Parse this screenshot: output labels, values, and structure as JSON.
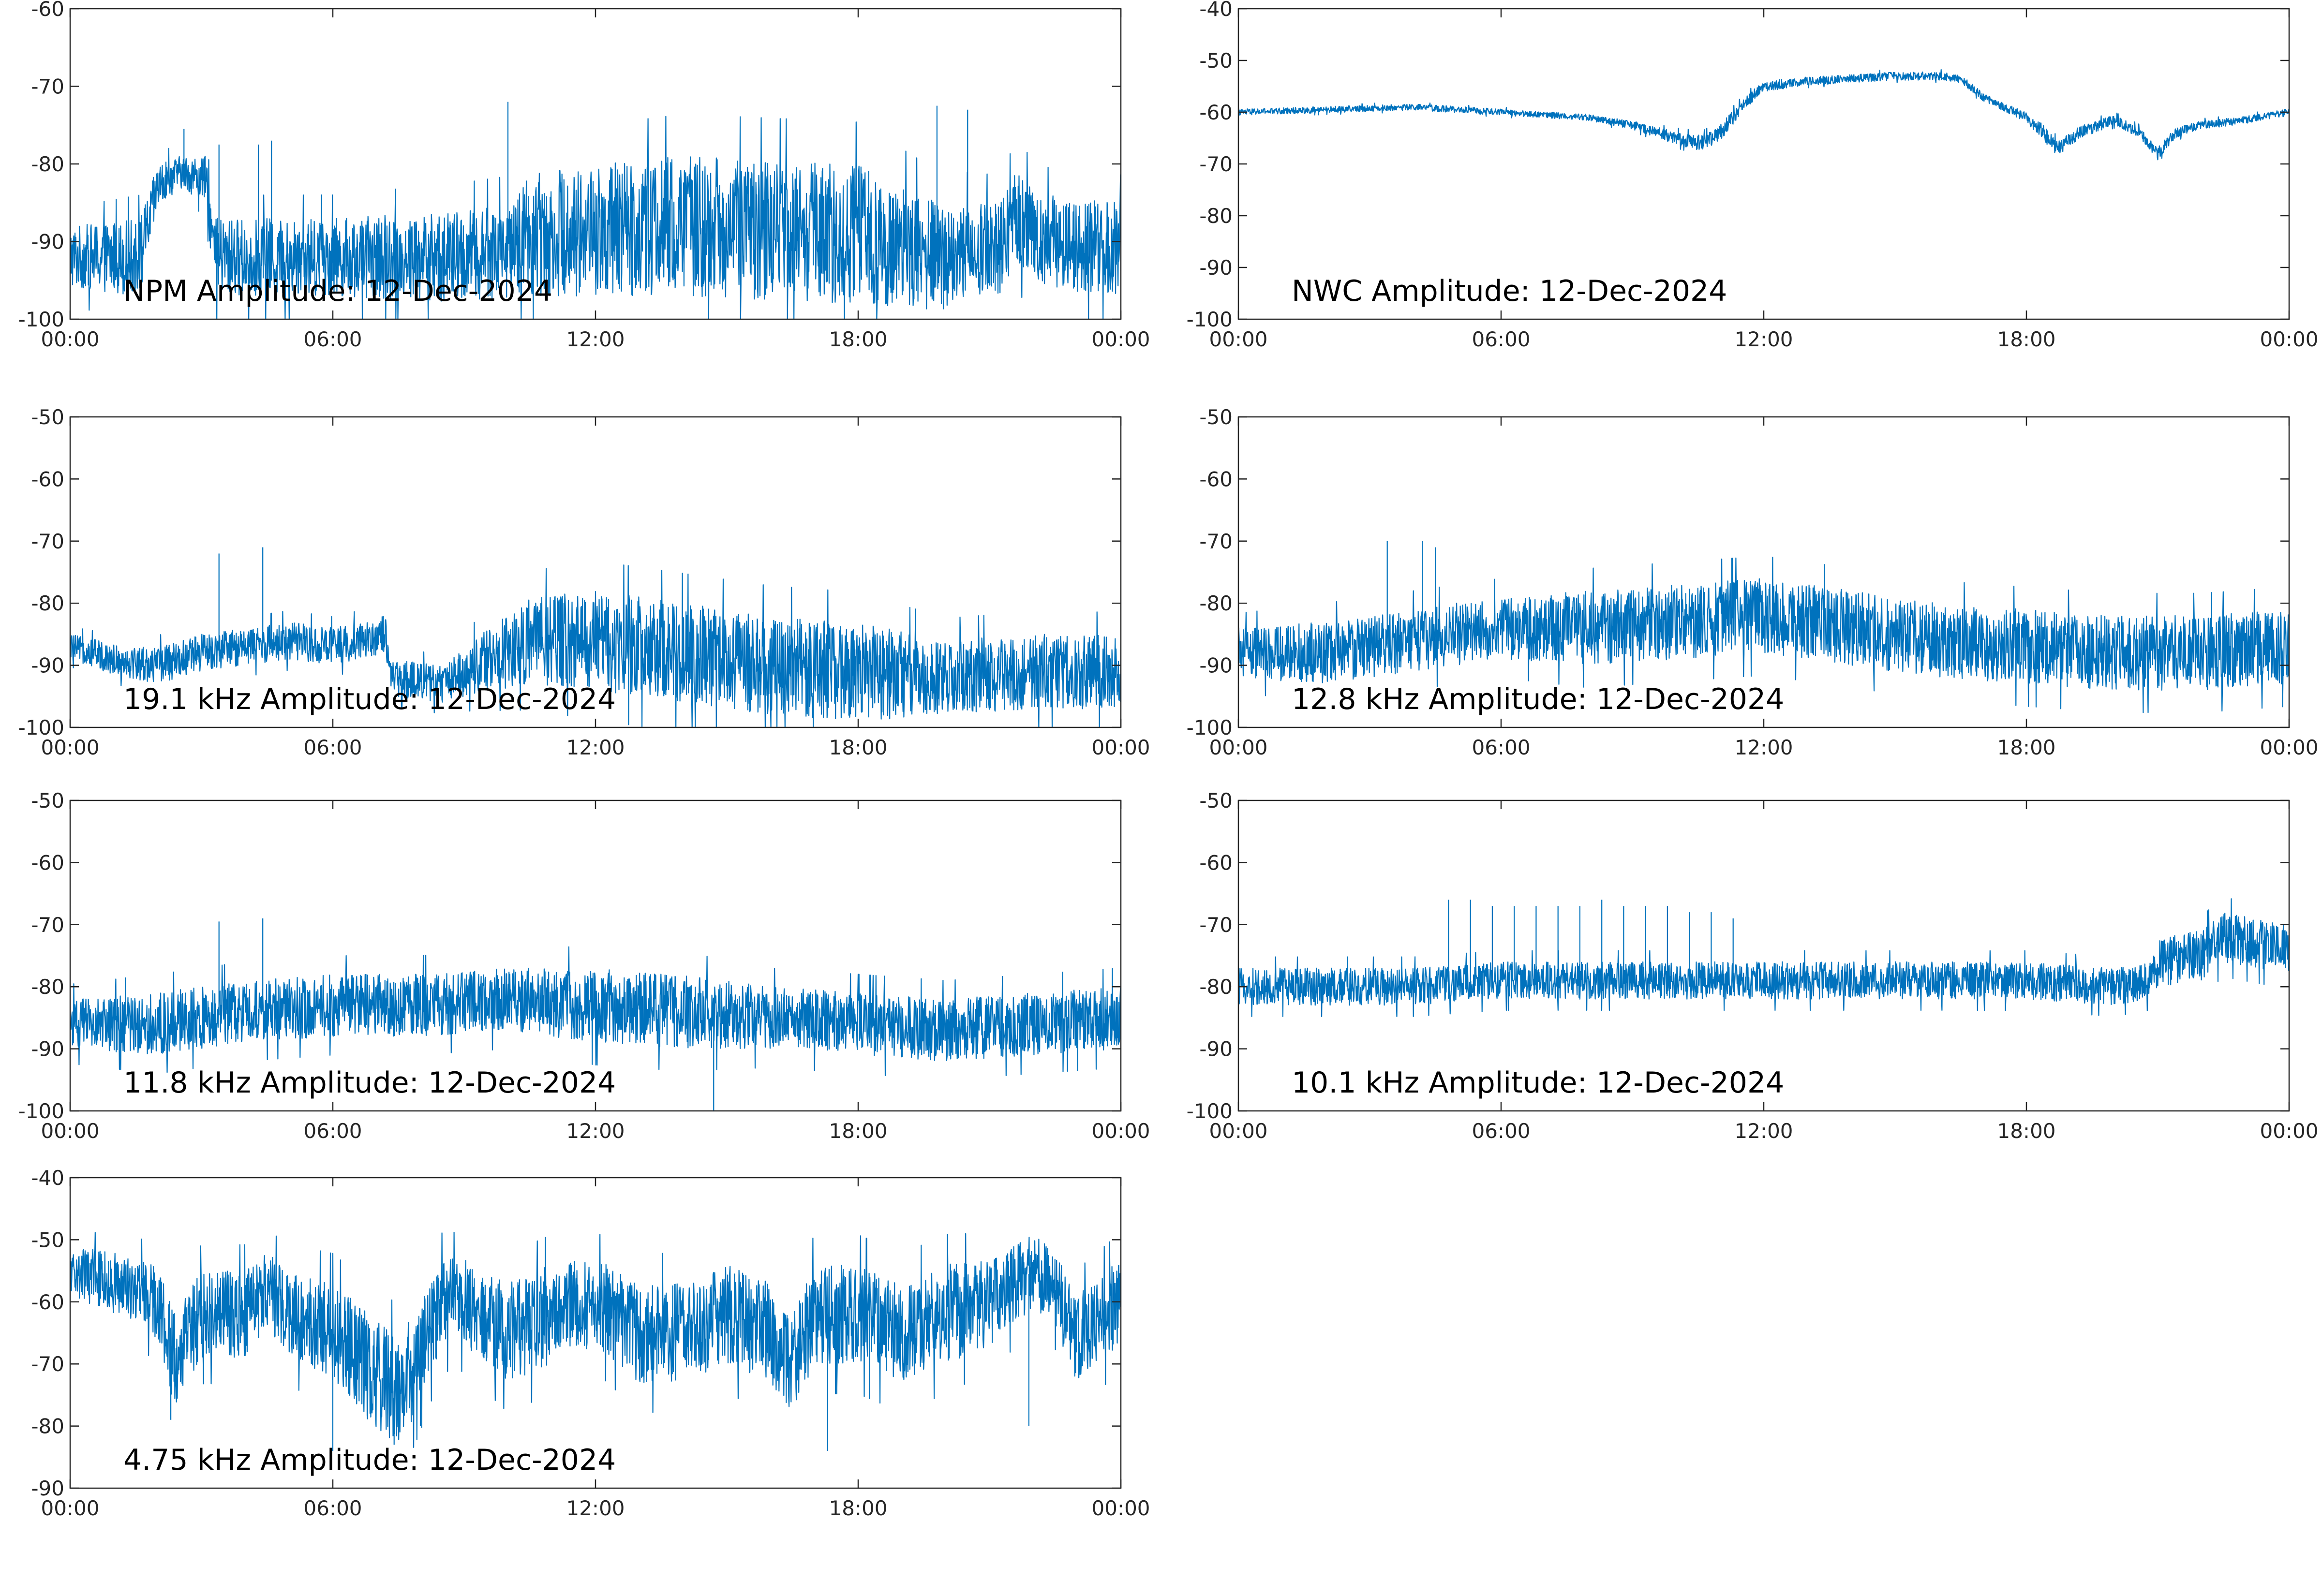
{
  "figure": {
    "background": "#ffffff",
    "line_color": "#0072bd",
    "axis_color": "#262626"
  },
  "chart_data": [
    {
      "type": "line",
      "title": "NPM Amplitude: 12-Dec-2024",
      "xlabel": "",
      "ylabel": "",
      "xlim": [
        "00:00",
        "24:00"
      ],
      "xticks": [
        "00:00",
        "06:00",
        "12:00",
        "18:00",
        "00:00"
      ],
      "ylim": [
        -100,
        -60
      ],
      "yticks": [
        "-60",
        "-70",
        "-80",
        "-90",
        "-100"
      ],
      "grid": false,
      "series": [
        {
          "color": "#0072bd",
          "trend_x_hours": [
            0,
            1.6,
            2.0,
            2.5,
            3.1,
            3.3,
            6,
            9,
            10.2,
            10.3,
            14,
            18,
            19.8,
            21.2,
            21.6,
            22.3,
            24
          ],
          "trend_y": [
            -92,
            -92,
            -83,
            -81,
            -82,
            -92,
            -92,
            -92,
            -91,
            -89,
            -88,
            -89,
            -92,
            -91,
            -87,
            -90,
            -91
          ],
          "noise_band": [
            4,
            5,
            3,
            2,
            3,
            5,
            5,
            6,
            6,
            8,
            9,
            9,
            7,
            6,
            6,
            6,
            6
          ],
          "spikes": [
            [
              2.6,
              -75.5
            ],
            [
              3.4,
              -77.5
            ],
            [
              4.3,
              -77.5
            ],
            [
              4.6,
              -77
            ],
            [
              10.0,
              -72
            ],
            [
              19.8,
              -72.5
            ],
            [
              20.5,
              -73
            ]
          ]
        }
      ]
    },
    {
      "type": "line",
      "title": "NWC Amplitude: 12-Dec-2024",
      "xlabel": "",
      "ylabel": "",
      "xlim": [
        "00:00",
        "24:00"
      ],
      "xticks": [
        "00:00",
        "06:00",
        "12:00",
        "18:00",
        "00:00"
      ],
      "ylim": [
        -100,
        -40
      ],
      "yticks": [
        "-40",
        "-50",
        "-60",
        "-70",
        "-80",
        "-90",
        "-100"
      ],
      "grid": false,
      "series": [
        {
          "color": "#0072bd",
          "trend_x_hours": [
            0,
            2,
            4,
            6,
            8,
            9,
            10,
            10.6,
            11,
            11.6,
            12,
            13,
            14,
            15,
            16,
            16.5,
            17,
            18,
            18.4,
            18.7,
            19.2,
            20,
            20.6,
            21,
            21.4,
            22,
            23,
            24
          ],
          "trend_y": [
            -60,
            -59.5,
            -59,
            -60,
            -61,
            -62.5,
            -65,
            -66,
            -64,
            -58,
            -55,
            -54,
            -53.5,
            -53,
            -53,
            -53.5,
            -57,
            -61,
            -64,
            -67,
            -64,
            -61.5,
            -64,
            -68,
            -64,
            -62.5,
            -61.5,
            -60
          ],
          "noise_band": [
            0.6,
            0.6,
            0.6,
            0.6,
            0.6,
            0.8,
            1.2,
            1.5,
            1.5,
            1.2,
            1,
            0.8,
            0.8,
            0.8,
            0.8,
            0.8,
            0.8,
            1,
            1.5,
            1.5,
            1.2,
            1,
            1,
            1.2,
            1,
            0.8,
            0.7,
            0.7
          ],
          "spikes": []
        }
      ]
    },
    {
      "type": "line",
      "title": "19.1 kHz Amplitude: 12-Dec-2024",
      "xlabel": "",
      "ylabel": "",
      "xlim": [
        "00:00",
        "24:00"
      ],
      "xticks": [
        "00:00",
        "06:00",
        "12:00",
        "18:00",
        "00:00"
      ],
      "ylim": [
        -100,
        -50
      ],
      "yticks": [
        "-50",
        "-60",
        "-70",
        "-80",
        "-90",
        "-100"
      ],
      "grid": false,
      "series": [
        {
          "color": "#0072bd",
          "trend_x_hours": [
            0,
            1,
            2,
            3,
            4,
            5,
            6,
            7.2,
            7.3,
            8.5,
            9,
            10.5,
            12,
            14,
            16,
            18,
            20,
            22,
            24
          ],
          "trend_y": [
            -87,
            -89,
            -90,
            -88,
            -87,
            -86,
            -87,
            -85,
            -92,
            -93,
            -91,
            -86,
            -86,
            -88,
            -90,
            -91,
            -92,
            -91,
            -91
          ],
          "noise_band": [
            2,
            2.5,
            3,
            3,
            3,
            3,
            3,
            3,
            3,
            3,
            4,
            7,
            8,
            8,
            8,
            8,
            6,
            6,
            6
          ],
          "spikes": [
            [
              3.4,
              -72
            ],
            [
              4.4,
              -71
            ]
          ]
        }
      ]
    },
    {
      "type": "line",
      "title": "12.8 kHz Amplitude: 12-Dec-2024",
      "xlabel": "",
      "ylabel": "",
      "xlim": [
        "00:00",
        "24:00"
      ],
      "xticks": [
        "00:00",
        "06:00",
        "12:00",
        "18:00",
        "00:00"
      ],
      "ylim": [
        -100,
        -50
      ],
      "yticks": [
        "-50",
        "-60",
        "-70",
        "-80",
        "-90",
        "-100"
      ],
      "grid": false,
      "series": [
        {
          "color": "#0072bd",
          "trend_x_hours": [
            0,
            2,
            4,
            6,
            8,
            10,
            12,
            14,
            16,
            18,
            20,
            22,
            24
          ],
          "trend_y": [
            -88,
            -88,
            -86,
            -84,
            -84,
            -83,
            -82,
            -84,
            -86,
            -87,
            -88,
            -88,
            -87
          ],
          "noise_band": [
            4,
            5,
            5,
            5,
            6,
            6,
            6,
            6,
            6,
            6,
            6,
            6,
            6
          ],
          "spikes": [
            [
              3.4,
              -70
            ],
            [
              4.2,
              -70
            ],
            [
              4.5,
              -71
            ]
          ]
        }
      ]
    },
    {
      "type": "line",
      "title": "11.8 kHz Amplitude: 12-Dec-2024",
      "xlabel": "",
      "ylabel": "",
      "xlim": [
        "00:00",
        "24:00"
      ],
      "xticks": [
        "00:00",
        "06:00",
        "12:00",
        "18:00",
        "00:00"
      ],
      "ylim": [
        -100,
        -50
      ],
      "yticks": [
        "-50",
        "-60",
        "-70",
        "-80",
        "-90",
        "-100"
      ],
      "grid": false,
      "series": [
        {
          "color": "#0072bd",
          "trend_x_hours": [
            0,
            2,
            4,
            6,
            8,
            10,
            12,
            14,
            16,
            18,
            20,
            22,
            24
          ],
          "trend_y": [
            -86,
            -86,
            -84,
            -83,
            -83,
            -82,
            -83,
            -84,
            -85,
            -86,
            -87,
            -86,
            -85
          ],
          "noise_band": [
            4,
            5,
            5,
            5,
            5,
            5,
            6,
            6,
            5,
            5,
            5,
            5,
            5
          ],
          "spikes": [
            [
              3.4,
              -69.5
            ],
            [
              4.4,
              -69
            ],
            [
              14.7,
              -100
            ]
          ]
        }
      ]
    },
    {
      "type": "line",
      "title": "10.1 kHz Amplitude: 12-Dec-2024",
      "xlabel": "",
      "ylabel": "",
      "xlim": [
        "00:00",
        "24:00"
      ],
      "xticks": [
        "00:00",
        "06:00",
        "12:00",
        "18:00",
        "00:00"
      ],
      "ylim": [
        -100,
        -50
      ],
      "yticks": [
        "-50",
        "-60",
        "-70",
        "-80",
        "-90",
        "-100"
      ],
      "grid": false,
      "series": [
        {
          "color": "#0072bd",
          "trend_x_hours": [
            0,
            2,
            4,
            6,
            8,
            10,
            12,
            14,
            16,
            18,
            20,
            20.8,
            21,
            22,
            22.5,
            24
          ],
          "trend_y": [
            -80,
            -80,
            -80,
            -79,
            -79,
            -79,
            -79,
            -79,
            -79,
            -79,
            -80,
            -79,
            -76,
            -75,
            -72,
            -74
          ],
          "noise_band": [
            3,
            3,
            3,
            3,
            3,
            3,
            3,
            3,
            3,
            3,
            3,
            3,
            4,
            4,
            4,
            4
          ],
          "spikes": [
            [
              4.8,
              -66
            ],
            [
              5.3,
              -66
            ],
            [
              5.8,
              -67
            ],
            [
              6.3,
              -67
            ],
            [
              6.8,
              -67
            ],
            [
              7.3,
              -67
            ],
            [
              7.8,
              -67
            ],
            [
              8.3,
              -66
            ],
            [
              8.8,
              -67
            ],
            [
              9.3,
              -67
            ],
            [
              9.8,
              -67
            ],
            [
              10.3,
              -68
            ],
            [
              10.8,
              -68
            ],
            [
              11.3,
              -69
            ]
          ]
        }
      ]
    },
    {
      "type": "line",
      "title": "4.75 kHz Amplitude: 12-Dec-2024",
      "xlabel": "",
      "ylabel": "",
      "xlim": [
        "00:00",
        "24:00"
      ],
      "xticks": [
        "00:00",
        "06:00",
        "12:00",
        "18:00",
        "00:00"
      ],
      "ylim": [
        -90,
        -40
      ],
      "yticks": [
        "-40",
        "-50",
        "-60",
        "-70",
        "-80",
        "-90"
      ],
      "grid": false,
      "series": [
        {
          "color": "#0072bd",
          "trend_x_hours": [
            0,
            1,
            2,
            2.4,
            3,
            4,
            4.5,
            5,
            6,
            6.5,
            7,
            7.5,
            8,
            8.5,
            9,
            10,
            11,
            12,
            13,
            14,
            15,
            16,
            16.5,
            17,
            18,
            19,
            20,
            21,
            22,
            22.5,
            23,
            24
          ],
          "trend_y": [
            -55,
            -57,
            -60,
            -70,
            -62,
            -62,
            -58,
            -62,
            -65,
            -68,
            -72,
            -75,
            -68,
            -60,
            -60,
            -65,
            -62,
            -60,
            -65,
            -65,
            -62,
            -65,
            -70,
            -62,
            -62,
            -65,
            -62,
            -60,
            -55,
            -58,
            -66,
            -60
          ],
          "noise_band": [
            4,
            5,
            6,
            8,
            7,
            7,
            6,
            7,
            8,
            8,
            9,
            9,
            8,
            7,
            7,
            8,
            8,
            7,
            8,
            8,
            8,
            8,
            8,
            8,
            8,
            8,
            8,
            7,
            6,
            6,
            7,
            7
          ],
          "spikes": [
            [
              2.3,
              -79
            ],
            [
              6.0,
              -84
            ],
            [
              7.4,
              -83
            ],
            [
              8.0,
              -80
            ],
            [
              17.3,
              -84
            ],
            [
              21.9,
              -80
            ]
          ]
        }
      ]
    }
  ]
}
